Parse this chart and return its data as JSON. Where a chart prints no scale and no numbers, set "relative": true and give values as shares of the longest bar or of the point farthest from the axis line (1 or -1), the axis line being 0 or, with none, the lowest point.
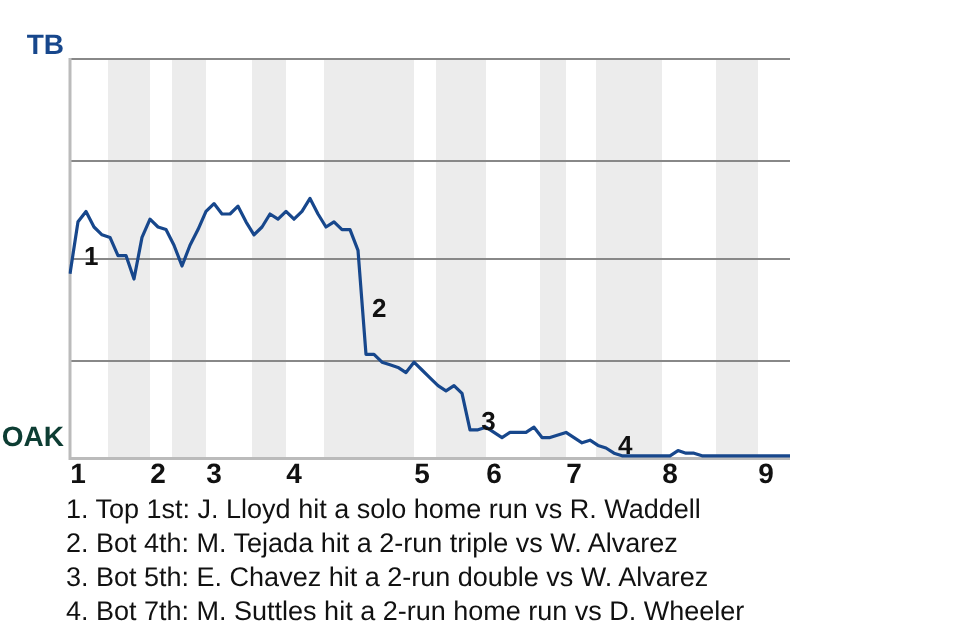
{
  "chart_data": {
    "type": "line",
    "relative": true,
    "categories": [
      null,
      "1",
      null,
      null,
      null,
      null,
      null,
      null,
      null,
      null,
      null,
      "2",
      null,
      null,
      null,
      null,
      null,
      null,
      "3",
      null,
      null,
      null,
      null,
      null,
      null,
      null,
      null,
      null,
      "4",
      null,
      null,
      null,
      null,
      null,
      null,
      null,
      null,
      null,
      null,
      null,
      null,
      null,
      null,
      null,
      "5",
      null,
      null,
      null,
      null,
      null,
      null,
      null,
      null,
      "6",
      null,
      null,
      null,
      null,
      null,
      null,
      null,
      null,
      null,
      "7",
      null,
      null,
      null,
      null,
      null,
      null,
      null,
      null,
      null,
      null,
      null,
      "8",
      null,
      null,
      null,
      null,
      null,
      null,
      null,
      null,
      null,
      null,
      null,
      "9",
      null,
      null,
      null
    ],
    "series": [
      {
        "color": "#17478c",
        "values": [
          0.71,
          0.91,
          0.95,
          0.89,
          0.86,
          0.85,
          0.78,
          0.78,
          0.69,
          0.85,
          0.92,
          0.89,
          0.88,
          0.82,
          0.74,
          0.82,
          0.88,
          0.95,
          0.98,
          0.94,
          0.94,
          0.97,
          0.91,
          0.86,
          0.89,
          0.94,
          0.92,
          0.95,
          0.92,
          0.95,
          1,
          0.94,
          0.89,
          0.91,
          0.88,
          0.88,
          0.8,
          0.4,
          0.4,
          0.37,
          0.36,
          0.35,
          0.33,
          0.37,
          0.34,
          0.31,
          0.28,
          0.26,
          0.28,
          0.25,
          0.11,
          0.11,
          0.12,
          0.1,
          0.08,
          0.1,
          0.1,
          0.1,
          0.12,
          0.08,
          0.08,
          0.09,
          0.1,
          0.08,
          0.06,
          0.07,
          0.05,
          0.04,
          0.02,
          0.01,
          0.01,
          0.01,
          0.01,
          0.01,
          0.01,
          0.01,
          0.03,
          0.02,
          0.02,
          0.01,
          0.01,
          0.01,
          0.01,
          0.01,
          0.01,
          0.01,
          0.01,
          0.01,
          0.01,
          0.01,
          0.01
        ]
      }
    ],
    "marker": "none",
    "ref_lines": [
      {
        "axis": "y",
        "value": 0.38,
        "color": "#888888"
      },
      {
        "axis": "y",
        "value": 0.77,
        "color": "#888888"
      },
      {
        "axis": "y",
        "value": 1.15,
        "color": "#888888"
      },
      {
        "axis": "y",
        "value": 1.54,
        "color": "#888888"
      }
    ],
    "annotations": [
      "TB",
      "OAK",
      "1",
      "2",
      "3",
      "4",
      "1. Top 1st: J. Lloyd hit a solo home run vs R. Waddell",
      "2. Bot 4th: M. Tejada hit a 2-run triple vs W. Alvarez",
      "3. Bot 5th: E. Chavez hit a 2-run double vs W. Alvarez",
      "4. Bot 7th: M. Suttles hit a 2-run home run vs D. Wheeler"
    ]
  }
}
